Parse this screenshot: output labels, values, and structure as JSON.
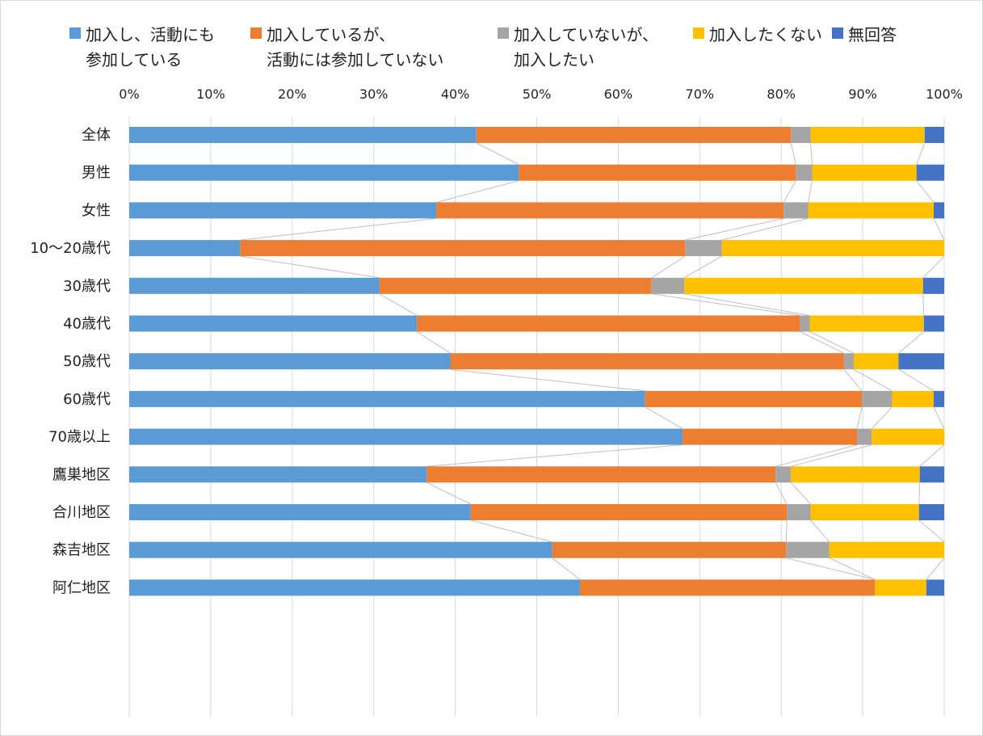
{
  "chart_data": {
    "type": "bar",
    "orientation": "horizontal",
    "stacked": "percent",
    "title": "",
    "xlabel": "",
    "ylabel": "",
    "xlim": [
      0,
      100
    ],
    "x_ticks": [
      "0%",
      "10%",
      "20%",
      "30%",
      "40%",
      "50%",
      "60%",
      "70%",
      "80%",
      "90%",
      "100%"
    ],
    "grid": true,
    "legend_position": "top",
    "series_lines": true,
    "categories": [
      "全体",
      "男性",
      "女性",
      "10～20歳代",
      "30歳代",
      "40歳代",
      "50歳代",
      "60歳代",
      "70歳以上",
      "鷹巣地区",
      "合川地区",
      "森吉地区",
      "阿仁地区"
    ],
    "groups": [
      [
        0
      ],
      [
        1,
        2
      ],
      [
        3,
        4,
        5,
        6,
        7,
        8
      ],
      [
        9,
        10,
        11,
        12
      ]
    ],
    "series": [
      {
        "name": "加入し、活動にも\n参加している",
        "color": "#5B9BD5",
        "values": [
          42.6,
          47.8,
          37.7,
          13.6,
          30.7,
          35.3,
          39.4,
          63.3,
          67.9,
          36.5,
          41.9,
          51.9,
          55.3
        ]
      },
      {
        "name": "加入しているが、\n活動には参加していない",
        "color": "#ED7D31",
        "values": [
          38.6,
          34.0,
          42.6,
          54.6,
          33.4,
          47.0,
          48.3,
          26.6,
          21.4,
          42.8,
          38.8,
          28.7,
          36.2
        ]
      },
      {
        "name": "加入していないが、\n加入したい",
        "color": "#A5A5A5",
        "values": [
          2.4,
          2.0,
          3.0,
          4.5,
          4.0,
          1.2,
          1.2,
          3.7,
          1.8,
          1.9,
          2.9,
          5.3,
          0.0
        ]
      },
      {
        "name": "加入したくない",
        "color": "#FFC000",
        "values": [
          14.0,
          12.8,
          15.4,
          27.3,
          29.3,
          14.0,
          5.5,
          5.1,
          8.9,
          15.8,
          13.3,
          14.1,
          6.3
        ]
      },
      {
        "name": "無回答",
        "color": "#4472C4",
        "values": [
          2.4,
          3.4,
          1.3,
          0.0,
          2.6,
          2.5,
          5.6,
          1.3,
          0.0,
          3.0,
          3.1,
          0.0,
          2.2
        ]
      }
    ]
  }
}
